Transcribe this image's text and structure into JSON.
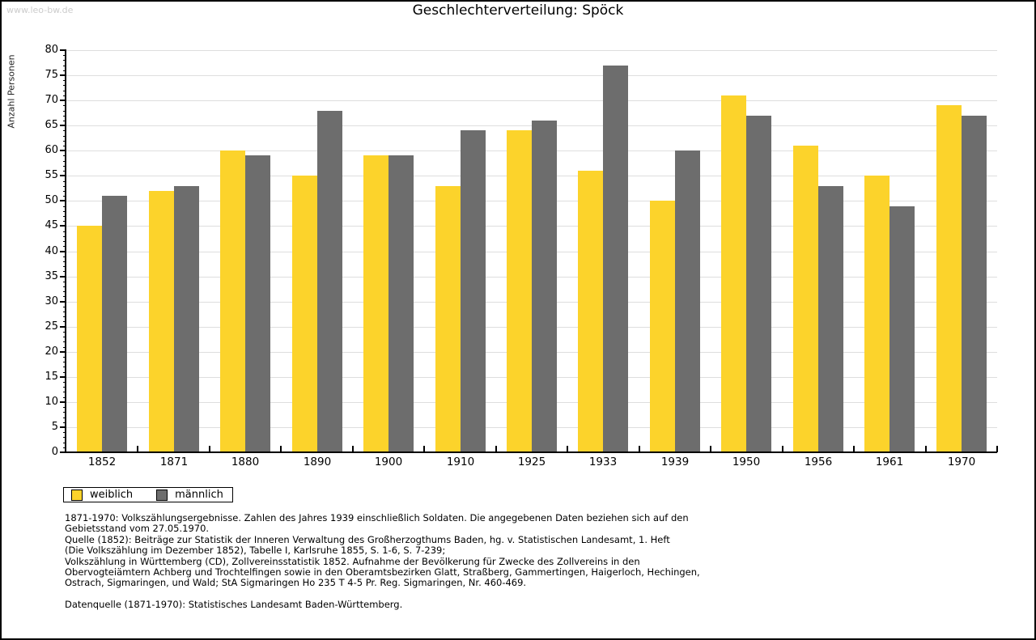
{
  "watermark": "www.leo-bw.de",
  "title": "Geschlechterverteilung: Spöck",
  "colors": {
    "female_bar": "#fcd32b",
    "male_bar": "#6d6d6d",
    "gridline": "#dedede",
    "axis": "#000000",
    "watermark": "#cccccc"
  },
  "chart_data": {
    "type": "bar",
    "title": "Geschlechterverteilung: Spöck",
    "xlabel": "",
    "ylabel": "Anzahl Personen",
    "ylim": [
      0,
      80
    ],
    "y_major_step": 5,
    "y_minor_step": 1,
    "grid": true,
    "legend_position": "bottom-left",
    "categories": [
      "1852",
      "1871",
      "1880",
      "1890",
      "1900",
      "1910",
      "1925",
      "1933",
      "1939",
      "1950",
      "1956",
      "1961",
      "1970"
    ],
    "series": [
      {
        "name": "weiblich",
        "color": "#fcd32b",
        "values": [
          45,
          52,
          60,
          55,
          59,
          53,
          64,
          56,
          50,
          71,
          61,
          55,
          69
        ]
      },
      {
        "name": "männlich",
        "color": "#6d6d6d",
        "values": [
          51,
          53,
          59,
          68,
          59,
          64,
          66,
          77,
          60,
          67,
          53,
          49,
          67
        ]
      }
    ]
  },
  "footer": {
    "lines": [
      "1871-1970: Volkszählungsergebnisse. Zahlen des Jahres 1939 einschließlich Soldaten. Die angegebenen Daten beziehen sich auf den",
      "Gebietsstand vom 27.05.1970.",
      "Quelle (1852): Beiträge zur Statistik der Inneren Verwaltung des Großherzogthums Baden, hg. v. Statistischen Landesamt, 1. Heft",
      "(Die Volkszählung im Dezember 1852), Tabelle I, Karlsruhe 1855, S. 1-6, S. 7-239;",
      "Volkszählung in Württemberg (CD), Zollvereinsstatistik 1852. Aufnahme der Bevölkerung für Zwecke des Zollvereins in den",
      "Obervogteiämtern Achberg und Trochtelfingen sowie in den Oberamtsbezirken Glatt, Straßberg, Gammertingen, Haigerloch, Hechingen,",
      "Ostrach, Sigmaringen, und Wald; StA Sigmaringen Ho 235 T 4-5 Pr. Reg. Sigmaringen, Nr. 460-469.",
      "",
      "Datenquelle (1871-1970): Statistisches Landesamt Baden-Württemberg."
    ]
  }
}
